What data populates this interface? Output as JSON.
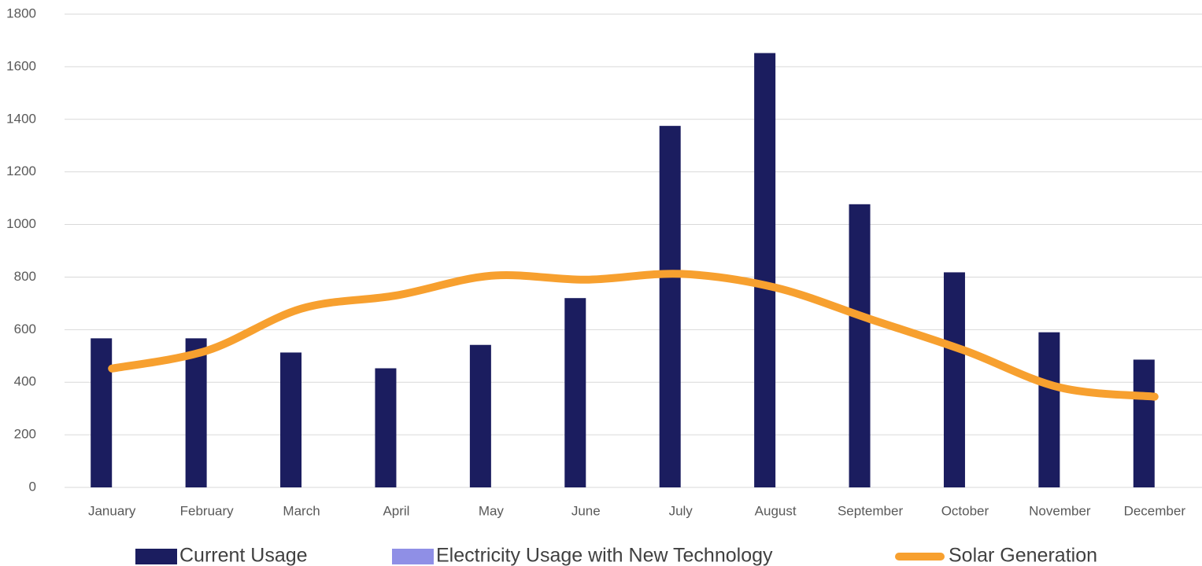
{
  "chart_data": {
    "type": "bar-line",
    "categories": [
      "January",
      "February",
      "March",
      "April",
      "May",
      "June",
      "July",
      "August",
      "September",
      "October",
      "November",
      "December"
    ],
    "series": [
      {
        "name": "Current Usage",
        "type": "bar",
        "color": "#1b1d5f",
        "values": [
          567,
          567,
          513,
          453,
          542,
          720,
          1375,
          1652,
          1077,
          818,
          590,
          486
        ]
      },
      {
        "name": "Electricity Usage with New Technology",
        "type": "bar",
        "color": "#8f8fe6",
        "values": [
          null,
          null,
          null,
          null,
          null,
          null,
          null,
          null,
          null,
          null,
          null,
          null
        ]
      },
      {
        "name": "Solar Generation",
        "type": "line",
        "color": "#f7a02f",
        "values": [
          452,
          520,
          680,
          730,
          805,
          790,
          812,
          760,
          640,
          520,
          380,
          345
        ]
      }
    ],
    "ylim": [
      0,
      1800
    ],
    "yticks": [
      0,
      200,
      400,
      600,
      800,
      1000,
      1200,
      1400,
      1600,
      1800
    ],
    "grid": true,
    "legend": "bottom"
  }
}
